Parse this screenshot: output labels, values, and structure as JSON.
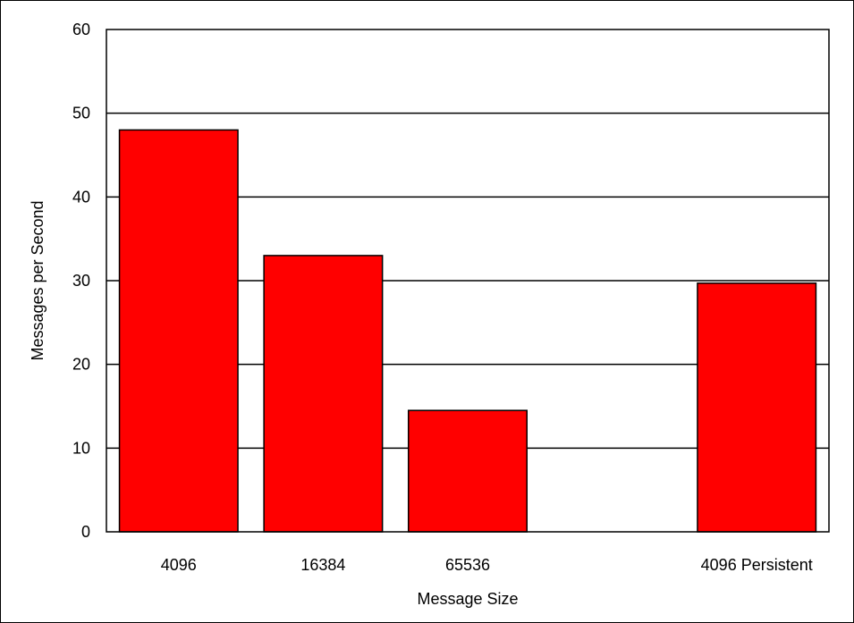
{
  "chart_data": {
    "type": "bar",
    "title": "",
    "xlabel": "Message Size",
    "ylabel": "Messages per Second",
    "categories": [
      "4096",
      "16384",
      "65536",
      "",
      "4096 Persistent"
    ],
    "values": [
      48,
      33,
      14.5,
      0,
      29.7
    ],
    "ylim": [
      0,
      60
    ],
    "yticks": [
      0,
      10,
      20,
      30,
      40,
      50,
      60
    ],
    "grid": true,
    "legend": "none",
    "colors": {
      "bar": "#ff0000",
      "bar_edge": "#000000",
      "grid": "#000000",
      "background": "#ffffff"
    }
  }
}
